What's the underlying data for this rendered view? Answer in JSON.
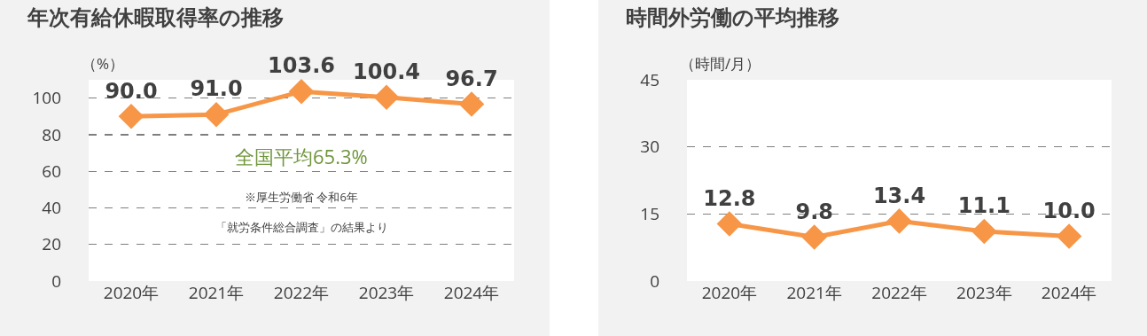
{
  "chart_data": [
    {
      "type": "line",
      "title": "年次有給休暇取得率の推移",
      "ylabel": "（%）",
      "categories": [
        "2020年",
        "2021年",
        "2022年",
        "2023年",
        "2024年"
      ],
      "series": [
        {
          "color": "#f79646",
          "values": [
            90.0,
            91.0,
            103.6,
            100.4,
            96.7
          ]
        }
      ],
      "value_labels": [
        "90.0",
        "91.0",
        "103.6",
        "100.4",
        "96.7"
      ],
      "ylim": [
        0,
        110
      ],
      "yticks": [
        0,
        20,
        40,
        60,
        80,
        100
      ],
      "grid": "y",
      "marker": "diamond",
      "line_style": "solid",
      "annotations": [
        "全国平均65.3%",
        "※厚生労働省 令和6年",
        "「就労条件総合調査」の結果より"
      ]
    },
    {
      "type": "line",
      "title": "時間外労働の平均推移",
      "ylabel": "（時間/月）",
      "categories": [
        "2020年",
        "2021年",
        "2022年",
        "2023年",
        "2024年"
      ],
      "series": [
        {
          "color": "#f79646",
          "values": [
            12.8,
            9.8,
            13.4,
            11.1,
            10.0
          ]
        }
      ],
      "value_labels": [
        "12.8",
        "9.8",
        "13.4",
        "11.1",
        "10.0"
      ],
      "ylim": [
        0,
        45
      ],
      "yticks": [
        0,
        15,
        30,
        45
      ],
      "grid": "y",
      "marker": "diamond",
      "line_style": "solid"
    }
  ]
}
